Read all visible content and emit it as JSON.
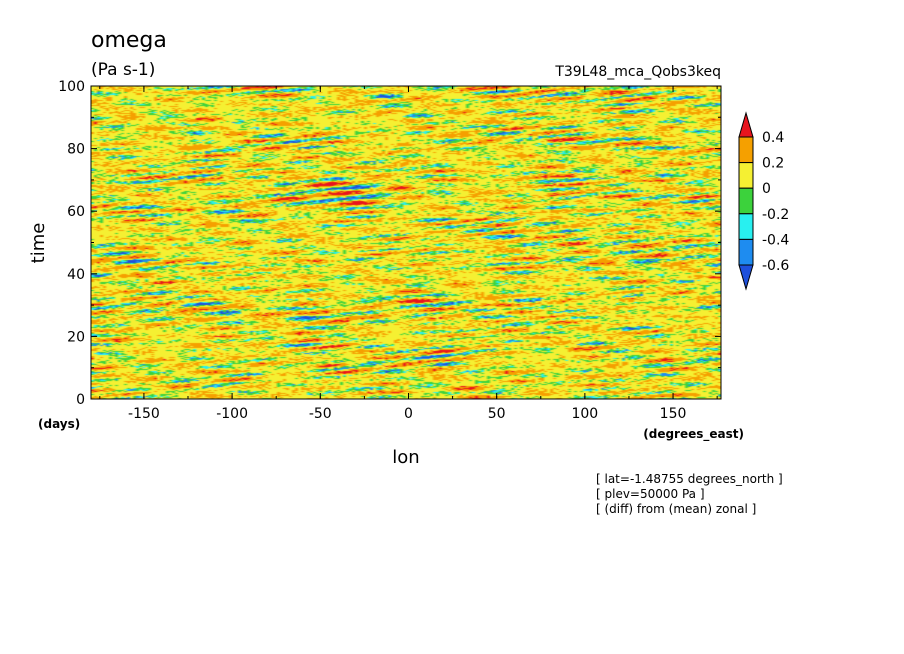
{
  "chart_data": {
    "type": "heatmap",
    "title": "omega",
    "units": "(Pa s-1)",
    "subtitle": "T39L48_mca_Qobs3keq",
    "xlabel": "lon",
    "ylabel": "time",
    "xunits": "(degrees_east)",
    "yunits": "(days)",
    "xlim": [
      -180,
      177.1875
    ],
    "ylim": [
      0,
      100
    ],
    "xticks": [
      "-150",
      "-100",
      "-50",
      "0",
      "50",
      "100",
      "150"
    ],
    "yticks": [
      "0",
      "20",
      "40",
      "60",
      "80",
      "100"
    ],
    "colorbar": {
      "labels": [
        "0.4",
        "0.2",
        "0",
        "-0.2",
        "-0.4",
        "-0.6"
      ],
      "colors": [
        "#e8141e",
        "#f5a000",
        "#f5f032",
        "#3cd23c",
        "#28f0f0",
        "#1e8cf0",
        "#1e50dc"
      ]
    },
    "notes": [
      "[ lat=-1.48755 degrees_north ]",
      "[ plev=50000 Pa ]",
      "[ (diff) from (mean) zonal ]"
    ]
  }
}
